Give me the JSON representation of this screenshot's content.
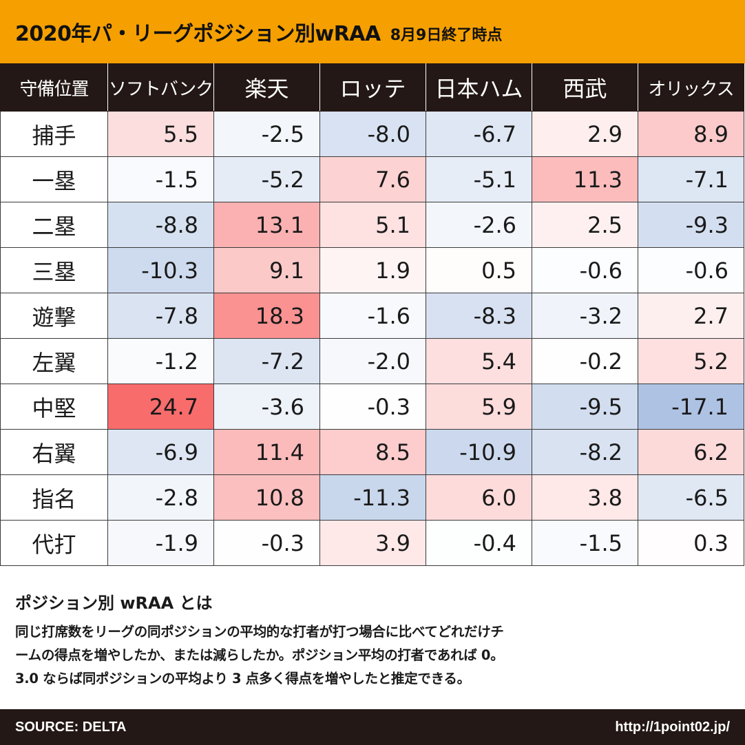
{
  "header": {
    "title": "2020年パ・リーグポジション別wRAA",
    "subtitle": "8月9日終了時点"
  },
  "chart_data": {
    "type": "table",
    "corner_label": "守備位置",
    "columns": [
      "ソフトバンク",
      "楽天",
      "ロッテ",
      "日本ハム",
      "西武",
      "オリックス"
    ],
    "rows": [
      {
        "position": "捕手",
        "values": [
          "5.5",
          "-2.5",
          "-8.0",
          "-6.7",
          "2.9",
          "8.9"
        ]
      },
      {
        "position": "一塁",
        "values": [
          "-1.5",
          "-5.2",
          "7.6",
          "-5.1",
          "11.3",
          "-7.1"
        ]
      },
      {
        "position": "二塁",
        "values": [
          "-8.8",
          "13.1",
          "5.1",
          "-2.6",
          "2.5",
          "-9.3"
        ]
      },
      {
        "position": "三塁",
        "values": [
          "-10.3",
          "9.1",
          "1.9",
          "0.5",
          "-0.6",
          "-0.6"
        ]
      },
      {
        "position": "遊撃",
        "values": [
          "-7.8",
          "18.3",
          "-1.6",
          "-8.3",
          "-3.2",
          "2.7"
        ]
      },
      {
        "position": "左翼",
        "values": [
          "-1.2",
          "-7.2",
          "-2.0",
          "5.4",
          "-0.2",
          "5.2"
        ]
      },
      {
        "position": "中堅",
        "values": [
          "24.7",
          "-3.6",
          "-0.3",
          "5.9",
          "-9.5",
          "-17.1"
        ]
      },
      {
        "position": "右翼",
        "values": [
          "-6.9",
          "11.4",
          "8.5",
          "-10.9",
          "-8.2",
          "6.2"
        ]
      },
      {
        "position": "指名",
        "values": [
          "-2.8",
          "10.8",
          "-11.3",
          "6.0",
          "3.8",
          "-6.5"
        ]
      },
      {
        "position": "代打",
        "values": [
          "-1.9",
          "-0.3",
          "3.9",
          "-0.4",
          "-1.5",
          "0.3"
        ]
      }
    ],
    "color_scale": {
      "positive": "#f86c6c",
      "negative": "#8aa7d6",
      "neutral": "#ffffff",
      "max_abs": 24.7
    }
  },
  "explanation": {
    "heading": "ポジション別 wRAA とは",
    "lines": [
      "同じ打席数をリーグの同ポジションの平均的な打者が打つ場合に比べてどれだけチ",
      "ームの得点を増やしたか、または減らしたか。ポジション平均の打者であれば 0。",
      "3.0 ならば同ポジションの平均より 3 点多く得点を増やしたと推定できる。"
    ]
  },
  "footer": {
    "source": "SOURCE: DELTA",
    "url": "http://1point02.jp/"
  },
  "colors": {
    "title_bar": "#f5a000",
    "header_bg": "#231815"
  }
}
